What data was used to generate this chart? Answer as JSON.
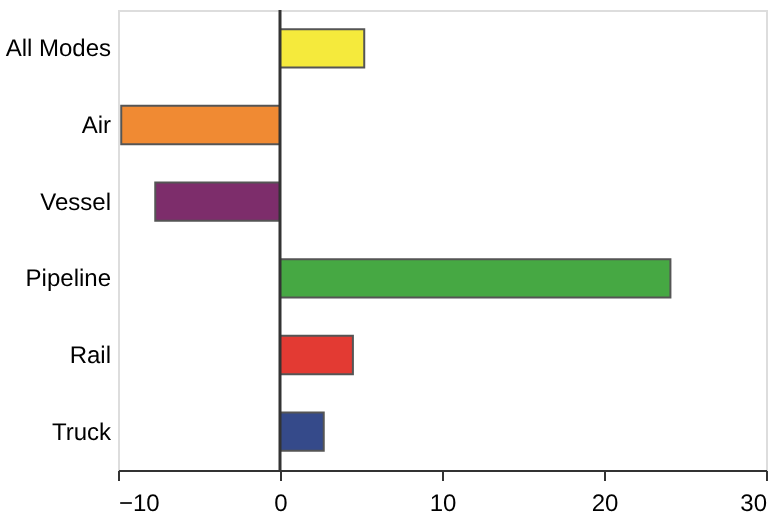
{
  "chart_data": {
    "type": "bar",
    "orientation": "horizontal",
    "categories": [
      "All Modes",
      "Air",
      "Vessel",
      "Pipeline",
      "Rail",
      "Truck"
    ],
    "values": [
      5.2,
      -9.8,
      -7.7,
      24.1,
      4.5,
      2.7
    ],
    "colors": [
      "#f5ea3c",
      "#f08a33",
      "#7d2d6b",
      "#46a843",
      "#e33a33",
      "#354a8a"
    ],
    "xlim": [
      -10,
      30
    ],
    "xticks": [
      -10,
      0,
      10,
      20,
      30
    ],
    "grid": false,
    "ref_lines": [
      {
        "axis": "x",
        "value": 0,
        "color": "#333333"
      }
    ]
  }
}
